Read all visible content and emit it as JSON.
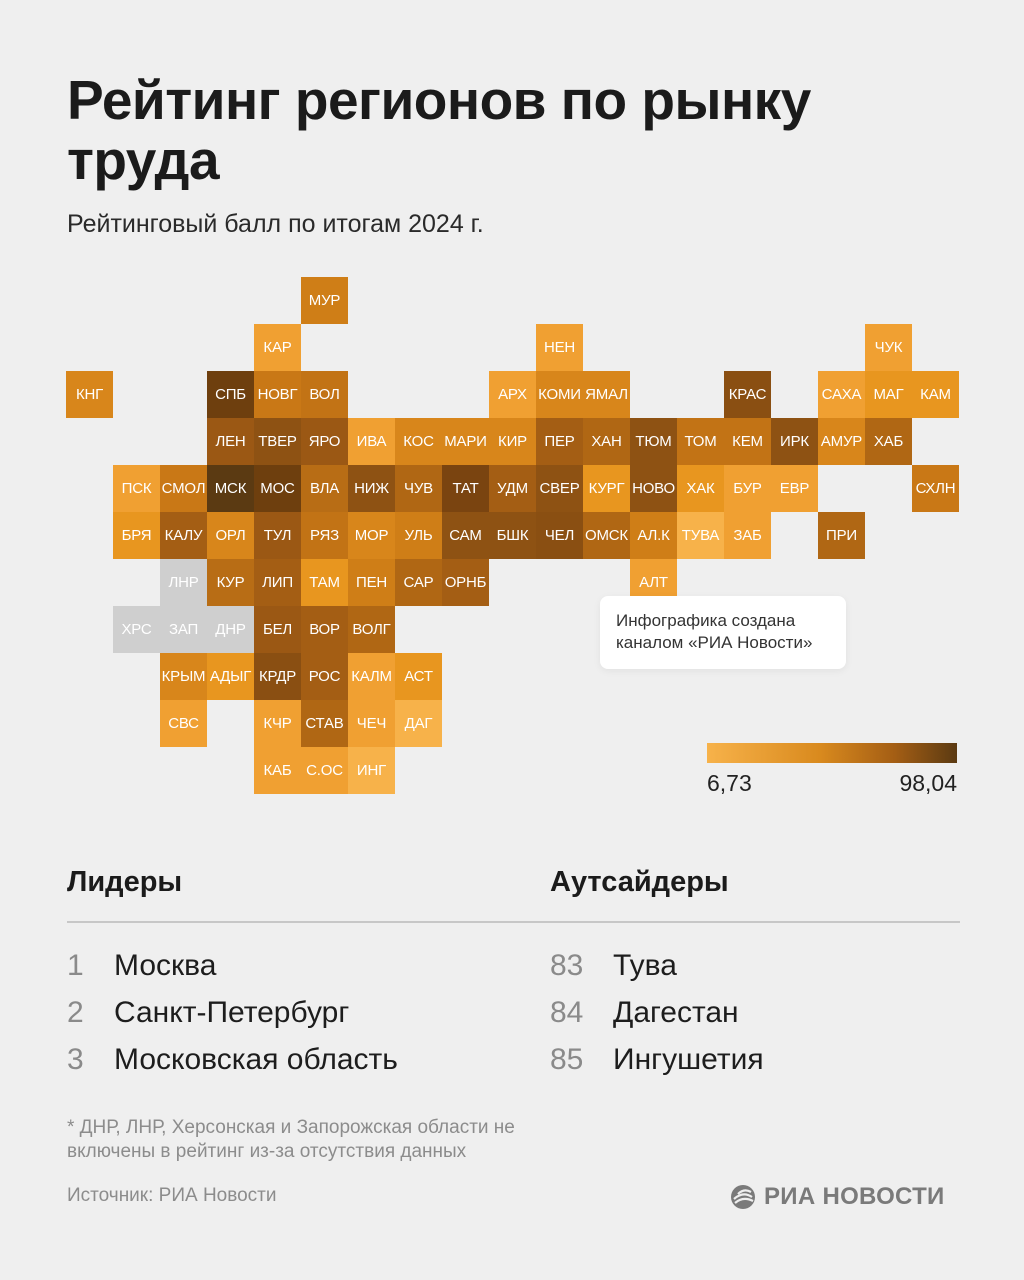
{
  "title": "Рейтинг регионов по рынку труда",
  "subtitle": "Рейтинговый балл по итогам 2024 г.",
  "note": "Инфографика создана каналом «РИА Новости»",
  "legend": {
    "min_label": "6,73",
    "max_label": "98,04",
    "colors": [
      "#f7b24a",
      "#d98a1e",
      "#a45e14",
      "#5b3a12"
    ],
    "no_data_color": "#cfcfcf"
  },
  "chart_data": {
    "type": "heatmap",
    "scale": {
      "min": 6.73,
      "max": 98.04
    },
    "tiles": [
      {
        "label": "МУР",
        "col": 5,
        "row": 0,
        "shade": "#cf7e17"
      },
      {
        "label": "КАР",
        "col": 4,
        "row": 1,
        "shade": "#f0a032"
      },
      {
        "label": "НЕН",
        "col": 10,
        "row": 1,
        "shade": "#f0a032"
      },
      {
        "label": "ЧУК",
        "col": 17,
        "row": 1,
        "shade": "#f0a032"
      },
      {
        "label": "КНГ",
        "col": 0,
        "row": 2,
        "shade": "#d8861b"
      },
      {
        "label": "СПБ",
        "col": 3,
        "row": 2,
        "shade": "#6e3f0e"
      },
      {
        "label": "НОВГ",
        "col": 4,
        "row": 2,
        "shade": "#c97816"
      },
      {
        "label": "ВОЛ",
        "col": 5,
        "row": 2,
        "shade": "#c27315"
      },
      {
        "label": "АРХ",
        "col": 9,
        "row": 2,
        "shade": "#f0a032"
      },
      {
        "label": "КОМИ",
        "col": 10,
        "row": 2,
        "shade": "#d8861b"
      },
      {
        "label": "ЯМАЛ",
        "col": 11,
        "row": 2,
        "shade": "#d8861b"
      },
      {
        "label": "КРАС",
        "col": 14,
        "row": 2,
        "shade": "#8a4f12"
      },
      {
        "label": "САХА",
        "col": 16,
        "row": 2,
        "shade": "#f0a032"
      },
      {
        "label": "МАГ",
        "col": 17,
        "row": 2,
        "shade": "#e8961f"
      },
      {
        "label": "КАМ",
        "col": 18,
        "row": 2,
        "shade": "#e8961f"
      },
      {
        "label": "ЛЕН",
        "col": 3,
        "row": 3,
        "shade": "#9b5814"
      },
      {
        "label": "ТВЕР",
        "col": 4,
        "row": 3,
        "shade": "#8e5213"
      },
      {
        "label": "ЯРО",
        "col": 5,
        "row": 3,
        "shade": "#9b5814"
      },
      {
        "label": "ИВА",
        "col": 6,
        "row": 3,
        "shade": "#f0a032"
      },
      {
        "label": "КОС",
        "col": 7,
        "row": 3,
        "shade": "#d8861b"
      },
      {
        "label": "МАРИ",
        "col": 8,
        "row": 3,
        "shade": "#d8861b"
      },
      {
        "label": "КИР",
        "col": 9,
        "row": 3,
        "shade": "#d8861b"
      },
      {
        "label": "ПЕР",
        "col": 10,
        "row": 3,
        "shade": "#a45e14"
      },
      {
        "label": "ХАН",
        "col": 11,
        "row": 3,
        "shade": "#b06714"
      },
      {
        "label": "ТЮМ",
        "col": 12,
        "row": 3,
        "shade": "#8e5213"
      },
      {
        "label": "ТОМ",
        "col": 13,
        "row": 3,
        "shade": "#c27315"
      },
      {
        "label": "КЕМ",
        "col": 14,
        "row": 3,
        "shade": "#c27315"
      },
      {
        "label": "ИРК",
        "col": 15,
        "row": 3,
        "shade": "#8e5213"
      },
      {
        "label": "АМУР",
        "col": 16,
        "row": 3,
        "shade": "#d8861b"
      },
      {
        "label": "ХАБ",
        "col": 17,
        "row": 3,
        "shade": "#b06714"
      },
      {
        "label": "ПСК",
        "col": 1,
        "row": 4,
        "shade": "#f0a032"
      },
      {
        "label": "СМОЛ",
        "col": 2,
        "row": 4,
        "shade": "#c97816"
      },
      {
        "label": "МСК",
        "col": 3,
        "row": 4,
        "shade": "#5b3a12"
      },
      {
        "label": "МОС",
        "col": 4,
        "row": 4,
        "shade": "#6e3f0e"
      },
      {
        "label": "ВЛА",
        "col": 5,
        "row": 4,
        "shade": "#b86d15"
      },
      {
        "label": "НИЖ",
        "col": 6,
        "row": 4,
        "shade": "#8e5213"
      },
      {
        "label": "ЧУВ",
        "col": 7,
        "row": 4,
        "shade": "#b06714"
      },
      {
        "label": "ТАТ",
        "col": 8,
        "row": 4,
        "shade": "#7a4410"
      },
      {
        "label": "УДМ",
        "col": 9,
        "row": 4,
        "shade": "#a45e14"
      },
      {
        "label": "СВЕР",
        "col": 10,
        "row": 4,
        "shade": "#8e5213"
      },
      {
        "label": "КУРГ",
        "col": 11,
        "row": 4,
        "shade": "#e8961f"
      },
      {
        "label": "НОВО",
        "col": 12,
        "row": 4,
        "shade": "#8e5213"
      },
      {
        "label": "ХАК",
        "col": 13,
        "row": 4,
        "shade": "#e8961f"
      },
      {
        "label": "БУР",
        "col": 14,
        "row": 4,
        "shade": "#f0a032"
      },
      {
        "label": "ЕВР",
        "col": 15,
        "row": 4,
        "shade": "#f0a032"
      },
      {
        "label": "СХЛН",
        "col": 18,
        "row": 4,
        "shade": "#c97816"
      },
      {
        "label": "БРЯ",
        "col": 1,
        "row": 5,
        "shade": "#e8961f"
      },
      {
        "label": "КАЛУ",
        "col": 2,
        "row": 5,
        "shade": "#a45e14"
      },
      {
        "label": "ОРЛ",
        "col": 3,
        "row": 5,
        "shade": "#d8861b"
      },
      {
        "label": "ТУЛ",
        "col": 4,
        "row": 5,
        "shade": "#9b5814"
      },
      {
        "label": "РЯЗ",
        "col": 5,
        "row": 5,
        "shade": "#c27315"
      },
      {
        "label": "МОР",
        "col": 6,
        "row": 5,
        "shade": "#d8861b"
      },
      {
        "label": "УЛЬ",
        "col": 7,
        "row": 5,
        "shade": "#cf7e17"
      },
      {
        "label": "САМ",
        "col": 8,
        "row": 5,
        "shade": "#8e5213"
      },
      {
        "label": "БШК",
        "col": 9,
        "row": 5,
        "shade": "#8e5213"
      },
      {
        "label": "ЧЕЛ",
        "col": 10,
        "row": 5,
        "shade": "#8a4f12"
      },
      {
        "label": "ОМСК",
        "col": 11,
        "row": 5,
        "shade": "#b06714"
      },
      {
        "label": "АЛ.К",
        "col": 12,
        "row": 5,
        "shade": "#cf7e17"
      },
      {
        "label": "ТУВА",
        "col": 13,
        "row": 5,
        "shade": "#f7b24a"
      },
      {
        "label": "ЗАБ",
        "col": 14,
        "row": 5,
        "shade": "#f0a032"
      },
      {
        "label": "ПРИ",
        "col": 16,
        "row": 5,
        "shade": "#b06714"
      },
      {
        "label": "ЛНР",
        "col": 2,
        "row": 6,
        "shade": "nodata"
      },
      {
        "label": "КУР",
        "col": 3,
        "row": 6,
        "shade": "#b86d15"
      },
      {
        "label": "ЛИП",
        "col": 4,
        "row": 6,
        "shade": "#a45e14"
      },
      {
        "label": "ТАМ",
        "col": 5,
        "row": 6,
        "shade": "#e8961f"
      },
      {
        "label": "ПЕН",
        "col": 6,
        "row": 6,
        "shade": "#cf7e17"
      },
      {
        "label": "САР",
        "col": 7,
        "row": 6,
        "shade": "#b06714"
      },
      {
        "label": "ОРНБ",
        "col": 8,
        "row": 6,
        "shade": "#a45e14"
      },
      {
        "label": "АЛТ",
        "col": 12,
        "row": 6,
        "shade": "#f0a032"
      },
      {
        "label": "ХРС",
        "col": 1,
        "row": 7,
        "shade": "nodata"
      },
      {
        "label": "ЗАП",
        "col": 2,
        "row": 7,
        "shade": "nodata"
      },
      {
        "label": "ДНР",
        "col": 3,
        "row": 7,
        "shade": "nodata"
      },
      {
        "label": "БЕЛ",
        "col": 4,
        "row": 7,
        "shade": "#9b5814"
      },
      {
        "label": "ВОР",
        "col": 5,
        "row": 7,
        "shade": "#a45e14"
      },
      {
        "label": "ВОЛГ",
        "col": 6,
        "row": 7,
        "shade": "#b06714"
      },
      {
        "label": "КРЫМ",
        "col": 2,
        "row": 8,
        "shade": "#d8861b"
      },
      {
        "label": "АДЫГ",
        "col": 3,
        "row": 8,
        "shade": "#e8961f"
      },
      {
        "label": "КРДР",
        "col": 4,
        "row": 8,
        "shade": "#8a4f12"
      },
      {
        "label": "РОС",
        "col": 5,
        "row": 8,
        "shade": "#a45e14"
      },
      {
        "label": "КАЛМ",
        "col": 6,
        "row": 8,
        "shade": "#f0a032"
      },
      {
        "label": "АСТ",
        "col": 7,
        "row": 8,
        "shade": "#e8961f"
      },
      {
        "label": "СВС",
        "col": 2,
        "row": 9,
        "shade": "#f0a032"
      },
      {
        "label": "КЧР",
        "col": 4,
        "row": 9,
        "shade": "#f0a032"
      },
      {
        "label": "СТАВ",
        "col": 5,
        "row": 9,
        "shade": "#b06714"
      },
      {
        "label": "ЧЕЧ",
        "col": 6,
        "row": 9,
        "shade": "#f0a032"
      },
      {
        "label": "ДАГ",
        "col": 7,
        "row": 9,
        "shade": "#f7b24a"
      },
      {
        "label": "КАБ",
        "col": 4,
        "row": 10,
        "shade": "#f0a032"
      },
      {
        "label": "С.ОС",
        "col": 5,
        "row": 10,
        "shade": "#f0a032"
      },
      {
        "label": "ИНГ",
        "col": 6,
        "row": 10,
        "shade": "#f7b24a"
      }
    ]
  },
  "leaders": {
    "heading": "Лидеры",
    "items": [
      {
        "rank": "1",
        "name": "Москва"
      },
      {
        "rank": "2",
        "name": "Санкт-Петербург"
      },
      {
        "rank": "3",
        "name": "Московская область"
      }
    ]
  },
  "outsiders": {
    "heading": "Аутсайдеры",
    "items": [
      {
        "rank": "83",
        "name": "Тува"
      },
      {
        "rank": "84",
        "name": "Дагестан"
      },
      {
        "rank": "85",
        "name": "Ингушетия"
      }
    ]
  },
  "footnote": "* ДНР, ЛНР, Херсонская и Запорожская области не включены в рейтинг из-за отсутствия данных",
  "source": "Источник: РИА Новости",
  "brand": "РИА НОВОСТИ"
}
